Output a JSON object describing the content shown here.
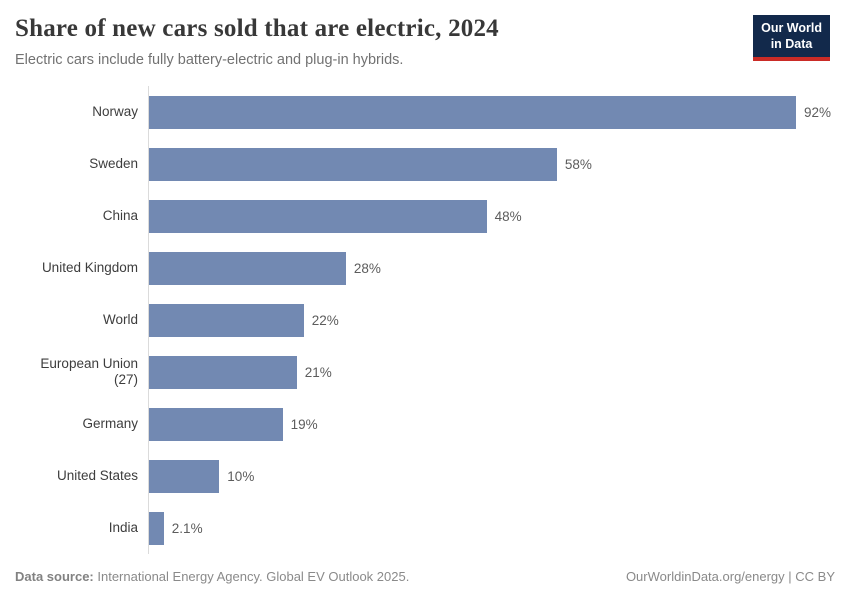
{
  "header": {
    "title": "Share of new cars sold that are electric, 2024",
    "subtitle": "Electric cars include fully battery-electric and plug-in hybrids.",
    "logo_line1": "Our World",
    "logo_line2": "in Data"
  },
  "chart_data": {
    "type": "bar",
    "orientation": "horizontal",
    "title": "Share of new cars sold that are electric, 2024",
    "subtitle": "Electric cars include fully battery-electric and plug-in hybrids.",
    "categories": [
      "Norway",
      "Sweden",
      "China",
      "United Kingdom",
      "World",
      "European Union (27)",
      "Germany",
      "United States",
      "India"
    ],
    "values": [
      92,
      58,
      48,
      28,
      22,
      21,
      19,
      10,
      2.1
    ],
    "value_labels": [
      "92%",
      "58%",
      "48%",
      "28%",
      "22%",
      "21%",
      "19%",
      "10%",
      "2.1%"
    ],
    "unit": "%",
    "xlim": [
      0,
      100
    ],
    "grid": false,
    "legend": "none",
    "sort": "descending",
    "bar_color": "#7289b2"
  },
  "footer": {
    "source_label": "Data source:",
    "source_text": " International Energy Agency. Global EV Outlook 2025.",
    "link_text": "OurWorldinData.org/energy | CC BY"
  },
  "colors": {
    "bar": "#7289b2",
    "axis_line": "#dbdbdb",
    "logo_bg": "#12294b",
    "logo_accent": "#ca2b26",
    "title_text": "#383838",
    "subtitle_text": "#727272"
  }
}
